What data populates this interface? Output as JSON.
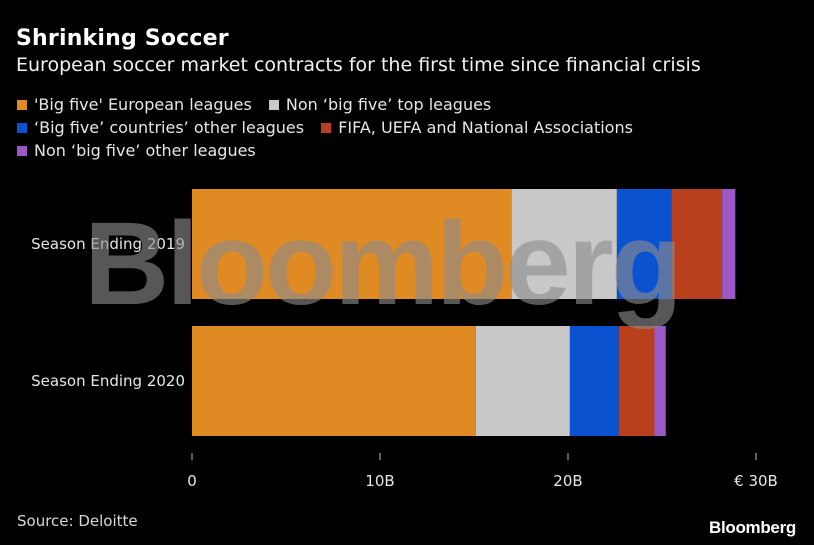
{
  "title": "Shrinking Soccer",
  "subtitle": "European soccer market contracts for the first time since financial crisis",
  "source": "Source: Deloitte",
  "brand": "Bloomberg",
  "watermark": "Bloomberg",
  "colors": {
    "big_five": "#E08A24",
    "non_big_five_top": "#C8C8C8",
    "big_five_other": "#0B52D0",
    "fifa_uefa": "#B8401C",
    "non_big_five_other": "#9B59C8",
    "background": "#000000"
  },
  "chart_data": {
    "type": "bar",
    "orientation": "horizontal",
    "stacked": true,
    "title": "Shrinking Soccer",
    "subtitle": "European soccer market contracts for the first time since financial crisis",
    "categories": [
      "Season Ending 2019",
      "Season Ending 2020"
    ],
    "series": [
      {
        "name": "'Big five' European leagues",
        "color": "#E08A24",
        "values": [
          17.0,
          15.1
        ]
      },
      {
        "name": "Non ‘big five’ top leagues",
        "color": "#C8C8C8",
        "values": [
          5.6,
          5.0
        ]
      },
      {
        "name": "‘Big five’ countries’ other leagues",
        "color": "#0B52D0",
        "values": [
          2.9,
          2.6
        ]
      },
      {
        "name": "FIFA, UEFA and National Associations",
        "color": "#B8401C",
        "values": [
          2.7,
          1.9
        ]
      },
      {
        "name": "Non ‘big five’ other leagues",
        "color": "#9B59C8",
        "values": [
          0.7,
          0.6
        ]
      }
    ],
    "xlim": [
      0,
      30
    ],
    "x_ticks": [
      0,
      10,
      20,
      30
    ],
    "x_tick_labels": [
      "0",
      "10B",
      "20B",
      "€ 30B"
    ],
    "xlabel": "",
    "ylabel": "",
    "grid": false,
    "legend_position": "top"
  }
}
